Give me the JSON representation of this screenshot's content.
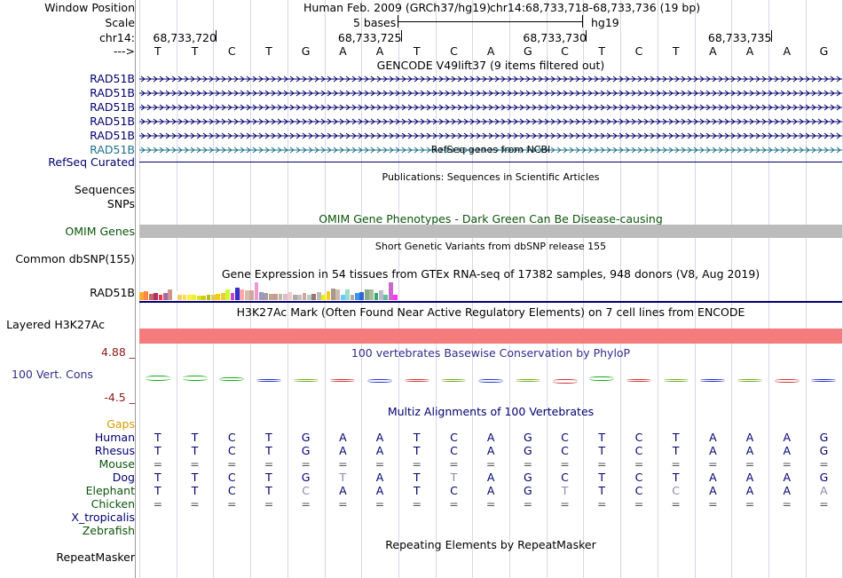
{
  "header": {
    "window_position_label": "Window Position",
    "assembly": "Human Feb. 2009 (GRCh37/hg19)",
    "position": "chr14:68,733,718-68,733,736 (19 bp)",
    "scale_label": "Scale",
    "scale_text": "5 bases",
    "scale_db": "hg19",
    "chrom_label": "chr14:",
    "coords": [
      "68,733,720",
      "68,733,725",
      "68,733,730",
      "68,733,735"
    ],
    "strand_label": "--->",
    "sequence": [
      "T",
      "T",
      "C",
      "T",
      "G",
      "A",
      "A",
      "T",
      "C",
      "A",
      "G",
      "C",
      "T",
      "C",
      "T",
      "A",
      "A",
      "A",
      "G"
    ]
  },
  "gencode": {
    "title": "GENCODE V49lift37 (9 items filtered out)",
    "genes": [
      {
        "name": "RAD51B",
        "color": "#00006e"
      },
      {
        "name": "RAD51B",
        "color": "#00006e"
      },
      {
        "name": "RAD51B",
        "color": "#00006e"
      },
      {
        "name": "RAD51B",
        "color": "#00006e"
      },
      {
        "name": "RAD51B",
        "color": "#00006e"
      },
      {
        "name": "RAD51B",
        "color": "#1a6f8a"
      }
    ]
  },
  "refseq": {
    "title": "RefSeq genes from NCBI",
    "label": "RefSeq Curated"
  },
  "publications": {
    "title": "Publications: Sequences in Scientific Articles"
  },
  "sequences_label": "Sequences",
  "snps_label": "SNPs",
  "omim": {
    "title": "OMIM Gene Phenotypes - Dark Green Can Be Disease-causing",
    "label": "OMIM Genes"
  },
  "dbsnp": {
    "title": "Short Genetic Variants from dbSNP release 155",
    "label": "Common dbSNP(155)"
  },
  "gtex": {
    "title": "Gene Expression in 54 tissues from GTEx RNA-seq of 17382 samples, 948 donors (V8, Aug 2019)",
    "label": "RAD51B",
    "bar_values": [
      0.45,
      0.5,
      0.35,
      0.4,
      0.3,
      0.4,
      0.6,
      0.5,
      0.3,
      0.3,
      0.3,
      0.3,
      0.25,
      0.25,
      0.3,
      0.3,
      0.35,
      0.4,
      0.6,
      0.4,
      0.7,
      0.6,
      0.55,
      0.55,
      1.0,
      0.45,
      0.4,
      0.35,
      0.35,
      0.35,
      0.35,
      0.45,
      0.3,
      0.3,
      0.4,
      0.3,
      0.35,
      0.45,
      0.3,
      0.5,
      0.65,
      0.6,
      0.3,
      0.6,
      0.3,
      0.4,
      0.45,
      0.6,
      0.6,
      0.4,
      0.55,
      0.3,
      1.0,
      0.3
    ],
    "bar_colors": [
      "#ffaa33",
      "#ff8844",
      "#cc6666",
      "#aa3366",
      "#ff3333",
      "#aa66aa",
      "#cc9988",
      "#ffffff",
      "#ffcc66",
      "#ffdd44",
      "#ffee44",
      "#eeee33",
      "#dddd22",
      "#cccc22",
      "#bbbb11",
      "#ddcc55",
      "#ffcc00",
      "#eecc33",
      "#ccff33",
      "#cc44cc",
      "#3333cc",
      "#ffaaaa",
      "#ddbbaa",
      "#ccaa99",
      "#ee99cc",
      "#9999bb",
      "#aa99aa",
      "#bbaa88",
      "#cc9999",
      "#bbbb99",
      "#ddbbcc",
      "#eecccc",
      "#aaaaaa",
      "#ccbbbb",
      "#ccaa99",
      "#bbcccc",
      "#997766",
      "#bbbbbb",
      "#eeee00",
      "#ffcc22",
      "#aa9988",
      "#ccbbaa",
      "#66ccff",
      "#99ddcc",
      "#bbaa99",
      "#3399ff",
      "#3366cc",
      "#88aa88",
      "#aabb99",
      "#33aa66",
      "#bbbbcc",
      "#66bb99",
      "#cc66cc",
      "#ff33ff"
    ]
  },
  "h3k27ac": {
    "title": "H3K27Ac Mark (Often Found Near Active Regulatory Elements) on 7 cell lines from ENCODE",
    "label": "Layered H3K27Ac",
    "color": "#f47c7c"
  },
  "phylop": {
    "title": "100 vertebrates Basewise Conservation by PhyloP",
    "label": "100 Vert. Cons",
    "ymax": "4.88 _",
    "ymin": "-4.5 _",
    "values": [
      1.6,
      2.0,
      0.8,
      -0.2,
      -0.1,
      -0.6,
      -0.8,
      -0.2,
      -0.3,
      -0.7,
      -0.2,
      -1.4,
      1.5,
      -0.3,
      -0.4,
      -0.1,
      -0.6,
      -0.7,
      -0.5
    ]
  },
  "multiz": {
    "title": "Multiz Alignments of 100 Vertebrates",
    "species": [
      {
        "name": "Human",
        "color": "#00006e",
        "bases": [
          "T",
          "T",
          "C",
          "T",
          "G",
          "A",
          "A",
          "T",
          "C",
          "A",
          "G",
          "C",
          "T",
          "C",
          "T",
          "A",
          "A",
          "A",
          "G"
        ]
      },
      {
        "name": "Rhesus",
        "color": "#00006e",
        "bases": [
          "T",
          "T",
          "C",
          "T",
          "G",
          "A",
          "A",
          "T",
          "C",
          "A",
          "G",
          "C",
          "T",
          "C",
          "T",
          "A",
          "A",
          "A",
          "G"
        ]
      },
      {
        "name": "Mouse",
        "color": "#0a540a",
        "bases": [
          "=",
          "=",
          "=",
          "=",
          "=",
          "=",
          "=",
          "=",
          "=",
          "=",
          "=",
          "=",
          "=",
          "=",
          "=",
          "=",
          "=",
          "=",
          "="
        ]
      },
      {
        "name": "Dog",
        "color": "#00006e",
        "bases": [
          "T",
          "T",
          "C",
          "T",
          "G",
          "T",
          "A",
          "T",
          "T",
          "A",
          "G",
          "C",
          "T",
          "C",
          "T",
          "A",
          "A",
          "A",
          "G"
        ]
      },
      {
        "name": "Elephant",
        "color": "#0a540a",
        "bases": [
          "T",
          "T",
          "C",
          "T",
          "C",
          "A",
          "A",
          "T",
          "C",
          "A",
          "G",
          "T",
          "T",
          "C",
          "C",
          "A",
          "A",
          "A",
          "A"
        ]
      },
      {
        "name": "Chicken",
        "color": "#0a540a",
        "bases": [
          "=",
          "=",
          "=",
          "=",
          "=",
          "=",
          "=",
          "=",
          "=",
          "=",
          "=",
          "=",
          "=",
          "=",
          "=",
          "=",
          "=",
          "=",
          "="
        ]
      },
      {
        "name": "X_tropicalis",
        "color": "#00006e",
        "bases": []
      },
      {
        "name": "Zebrafish",
        "color": "#0a540a",
        "bases": []
      }
    ]
  },
  "repeatmasker": {
    "title": "Repeating Elements by RepeatMasker",
    "label": "RepeatMasker"
  }
}
